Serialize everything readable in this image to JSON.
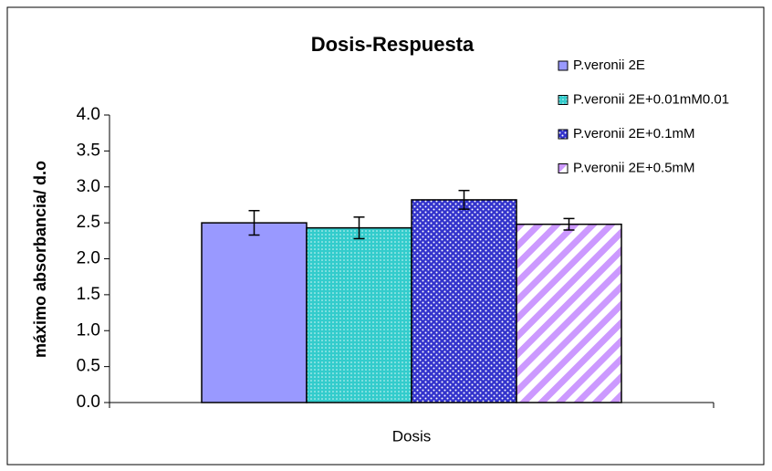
{
  "chart_data": {
    "type": "bar",
    "title": "Dosis-Respuesta",
    "y_label": "máximo absorbancia/ d.o",
    "categories": [
      "Dosis"
    ],
    "series": [
      {
        "name": "P.veronii 2E",
        "color": "#9999ff",
        "pattern": "solid",
        "values": [
          2.5
        ],
        "errors": [
          0.17
        ]
      },
      {
        "name": "P.veronii 2E+0.01mM0.01",
        "color": "#33cccc",
        "pattern": "dots",
        "values": [
          2.43
        ],
        "errors": [
          0.15
        ]
      },
      {
        "name": "P.veronii 2E+0.1mM",
        "color": "#3333cc",
        "pattern": "dots",
        "values": [
          2.82
        ],
        "errors": [
          0.13
        ]
      },
      {
        "name": "P.veronii 2E+0.5mM",
        "color": "#cc99ff",
        "pattern": "diagonal",
        "values": [
          2.48
        ],
        "errors": [
          0.08
        ]
      }
    ],
    "ylim": [
      0,
      4
    ],
    "yticks": [
      {
        "value": 0,
        "label": "0.0"
      },
      {
        "value": 0.5,
        "label": "0.5"
      },
      {
        "value": 1,
        "label": "1.0"
      },
      {
        "value": 1.5,
        "label": "1.5"
      },
      {
        "value": 2,
        "label": "2.0"
      },
      {
        "value": 2.5,
        "label": "2.5"
      },
      {
        "value": 3,
        "label": "3.0"
      },
      {
        "value": 3.5,
        "label": "3.5"
      },
      {
        "value": 4,
        "label": "4.0"
      }
    ],
    "grid": false,
    "legend": "upper right"
  }
}
